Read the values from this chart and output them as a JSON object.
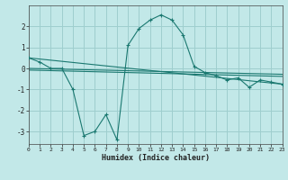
{
  "xlabel": "Humidex (Indice chaleur)",
  "bg_color": "#c2e8e8",
  "grid_color": "#9ecece",
  "line_color": "#1a7870",
  "xlim": [
    0,
    23
  ],
  "ylim": [
    -3.6,
    3.0
  ],
  "yticks": [
    -3,
    -2,
    -1,
    0,
    1,
    2
  ],
  "xticks": [
    0,
    1,
    2,
    3,
    4,
    5,
    6,
    7,
    8,
    9,
    10,
    11,
    12,
    13,
    14,
    15,
    16,
    17,
    18,
    19,
    20,
    21,
    22,
    23
  ],
  "series": [
    {
      "x": [
        0,
        1,
        2,
        3,
        4,
        5,
        6,
        7,
        8,
        9,
        10,
        11,
        12,
        13,
        14,
        15,
        16,
        17,
        18,
        19,
        20,
        21,
        22,
        23
      ],
      "y": [
        0.5,
        0.3,
        0.0,
        0.0,
        -1.0,
        -3.2,
        -3.0,
        -2.2,
        -3.4,
        1.1,
        1.9,
        2.3,
        2.55,
        2.3,
        1.6,
        0.1,
        -0.2,
        -0.35,
        -0.55,
        -0.45,
        -0.9,
        -0.55,
        -0.65,
        -0.75
      ],
      "marker": "+"
    },
    {
      "x": [
        0,
        23
      ],
      "y": [
        0.5,
        -0.75
      ],
      "marker": null
    },
    {
      "x": [
        0,
        23
      ],
      "y": [
        0.0,
        -0.28
      ],
      "marker": null
    },
    {
      "x": [
        0,
        23
      ],
      "y": [
        -0.08,
        -0.38
      ],
      "marker": null
    }
  ]
}
